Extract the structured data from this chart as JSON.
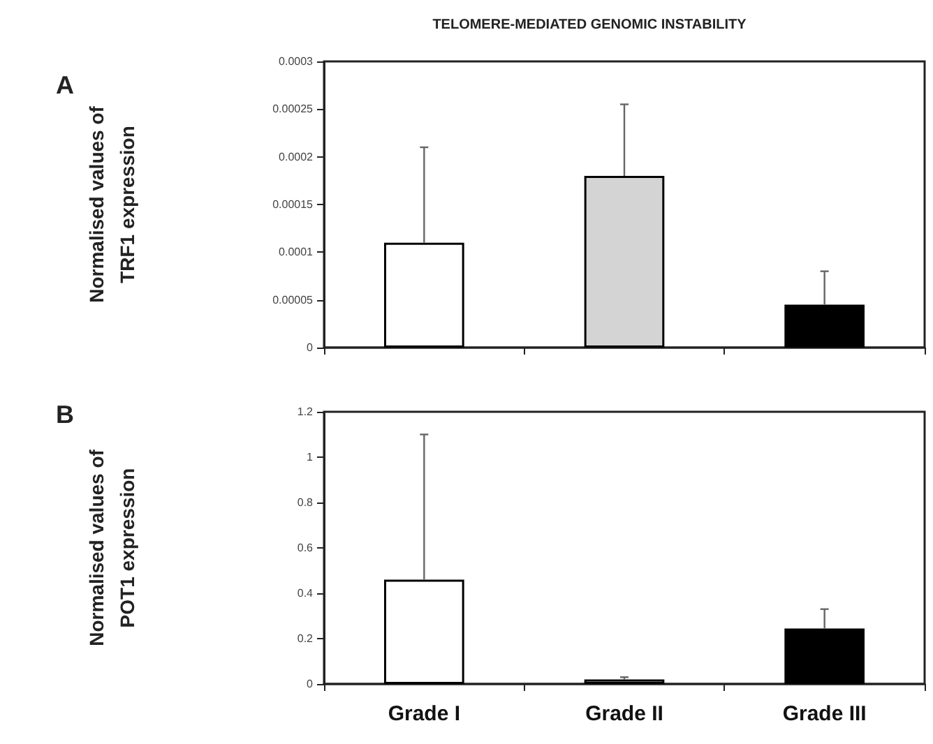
{
  "chart_data": [
    {
      "type": "bar",
      "title": "TELOMERE-MEDIATED GENOMIC INSTABILITY",
      "ylabel": "Normalised values of\nTRF1 expression",
      "annotations": [
        "A"
      ],
      "categories": [
        null,
        null,
        null
      ],
      "values": [
        0.00011,
        0.00018,
        4.5e-05
      ],
      "colors": [
        "#ffffff",
        "#d4d4d4",
        "#000000"
      ],
      "errors": [
        [
          0.00011,
          0.00021
        ],
        [
          0.00018,
          0.000255
        ],
        [
          4.5e-05,
          8e-05
        ]
      ],
      "ylim": [
        0,
        0.0003
      ],
      "yticks": [
        0,
        {
          "value": 5e-05,
          "label": "0.00005"
        },
        0.0001,
        0.00015,
        0.0002,
        0.00025,
        0.0003
      ],
      "tick_labels": "y",
      "grid": false
    },
    {
      "type": "bar",
      "ylabel": "Normalised values of\nPOT1 expression",
      "annotations": [
        "B"
      ],
      "categories": [
        "Grade I",
        "Grade II",
        "Grade III"
      ],
      "values": [
        0.46,
        0.02,
        0.245
      ],
      "colors": [
        "#ffffff",
        "#d4d4d4",
        "#000000"
      ],
      "errors": [
        [
          0.46,
          1.1
        ],
        [
          0.02,
          0.03
        ],
        [
          0.245,
          0.33
        ]
      ],
      "ylim": [
        0,
        1.2
      ],
      "yticks": [
        0,
        0.2,
        0.4,
        0.6,
        0.8,
        1,
        1.2
      ],
      "grid": false
    }
  ]
}
